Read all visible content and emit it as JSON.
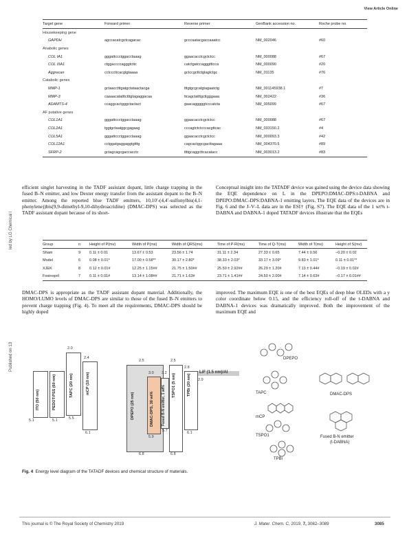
{
  "header": {
    "link": "View Article Online"
  },
  "sidebar": {
    "top": "led by LG Chemical l",
    "bottom": "Published on 13"
  },
  "table1": {
    "headers": [
      "Target gene",
      "Forward primer",
      "Reverse primer",
      "GenBank accession no.",
      "Roche probe no."
    ],
    "rows": [
      {
        "type": "group",
        "label": "Housekeeping gene"
      },
      {
        "type": "gene",
        "cells": [
          "GAPDH",
          "agccacatcgctcagacac",
          "gcccaatacgaccaaatcc",
          "NM_002046",
          "#60"
        ]
      },
      {
        "type": "group",
        "label": "Anabolic genes"
      },
      {
        "type": "gene",
        "cells": [
          "COL IA1",
          "gggattccctggacctaaag",
          "ggaacacctcgctctcc",
          "NM_000088",
          "#67"
        ]
      },
      {
        "type": "gene",
        "cells": [
          "COL IIIA1",
          "ctggaccccagggtcttc",
          "catctgatccagggtttcca",
          "NM_000090",
          "#20"
        ]
      },
      {
        "type": "gene",
        "cells": [
          "Aggrecan",
          "cctcccttcacgtgtaaaa",
          "gctccgcttctgtagtctgc",
          "NM_01135",
          "#76"
        ]
      },
      {
        "type": "group",
        "label": "Catabolic genes"
      },
      {
        "type": "gene",
        "cells": [
          "MMP-1",
          "gctaacctttgatgctataactacga",
          "tttgtgcgcatgtagaatctg",
          "NM_001145938.1",
          "#7"
        ]
      },
      {
        "type": "gene",
        "cells": [
          "MMP-3",
          "caaaacatatttctttgtagaggacaa",
          "ttcagctatttgcttgggaaa",
          "NM_002422",
          "#36"
        ]
      },
      {
        "type": "gene",
        "cells": [
          "ADAMTS-4",
          "ccaggcactgggctactact",
          "gaacagggggtcccatcta",
          "NM_005099",
          "#67"
        ]
      },
      {
        "type": "group",
        "label": "AF putative genes"
      },
      {
        "type": "gene",
        "cells": [
          "COL1A1",
          "gggattccctggacctaaag",
          "ggaacacctcgctctcc",
          "NM_000088",
          "#67"
        ]
      },
      {
        "type": "gene",
        "cells": [
          "COL2A1",
          "tggtgctaatggcgagaag",
          "cccagtctctcccacgttcac",
          "NM_033150.2",
          "#4"
        ]
      },
      {
        "type": "gene",
        "cells": [
          "COL5A1",
          "gggattccctggacctaaag",
          "ggaacacctcgctctcc",
          "NM_000093.3",
          "#42"
        ]
      },
      {
        "type": "gene",
        "cells": [
          "COL12A1",
          "cctggatgaggaggtgtttg",
          "cagcactggcgacttagaaa",
          "NM_004370.5",
          "#89"
        ]
      },
      {
        "type": "gene",
        "cells": [
          "SFRP-2",
          "gctagcagcgaccacctc",
          "ttttgcaggcttcacatacc",
          "NM_003013.2",
          "#83"
        ]
      }
    ]
  },
  "left_para": "efficient singlet harvesting in the TADF assistant dopant, little charge trapping in the fused B–N emitter, and low Dexter energy transfer from the assistant dopant to the B–N emitter. Among the reported blue TADF emitters, 10,10′-(4,4′-sulfonylbis(4,1-phenylene))bis(9,9-dimethyl-9,10-dihydroacridine) (DMAC-DPS) was selected as the TADF assistant dopant because of its short-",
  "right_para": "Conceptual insight into the TATADF device was gained using the device data showing the EQE dependence on L in the DPEPO:DMAC-DPS:t-DABNA and DPEPO:DMAC-DPS:DABNA-1 emitting layers. The EQE data of the devices are in Fig. 6 and the J–V–L data are in the ESI† (Fig. S7). The EQE data of the 1 wt% t-DABNA and DABNA-1 doped TATADF devices illustrate that the EQEs",
  "table2": {
    "headers": [
      "Group",
      "n",
      "Height of P(mv)",
      "Width of P(ms)",
      "Width of QRS(ms)",
      "Time of P-R(ms)",
      "Time of Q-T(ms)",
      "Width of T(ms)",
      "Height of S(mv)"
    ],
    "rows": [
      [
        "Sham",
        "9",
        "0.11 ± 0.01",
        "13.67 ± 0.53",
        "23.56 ± 1.74",
        "31.11 ± 2.34",
        "27.33 ± 0.65",
        "7.44 ± 0.56",
        "−0.20 ± 0.02"
      ],
      [
        "Model",
        "6",
        "0.08 ± 0.01*",
        "17.00 ± 0.58**",
        "30.17 ± 2.80*",
        "38.33 ± 2.03*",
        "33.17 ± 3.09*",
        "9.83 ± 1.01*",
        "0.11 ± 0.01**"
      ],
      [
        "XJEK",
        "8",
        "0.12 ± 0.01#",
        "12.25 ± 1.15##",
        "21.75 ± 1.50##",
        "25.50 ± 2.92##",
        "26.29 ± 1.20#",
        "7.13 ± 0.44#",
        "−0.19 ± 0.02#"
      ],
      [
        "Fosinopril",
        "7",
        "0.11 ± 0.01#",
        "13.14 ± 1.08##",
        "21.71 ± 1.63#",
        "23.71 ± 1.41##",
        "24.50 ± 2.00#",
        "7.14 ± 0.63#",
        "−0.17 ± 0.01##"
      ]
    ]
  },
  "left_para2": "DMAC-DPS is appropriate as the TADF assistant dopant material. Additionally, the HOMO/LUMO levels of DMAC-DPS are similar to those of the fused B–N emitters to prevent charge trapping (Fig. 4). To meet all the requirements, DMAC-DPS should be highly doped",
  "right_para2": "improved. The maximum EQE is one of the best EQEs of deep blue OLEDs with a y color coordinate below 0.15, and the efficiency roll-off of the t-DABNA and DABNA-1 devices was dramatically improved. Both the improvement of the maximum EQE and",
  "diagram": {
    "layers": [
      {
        "name": "ITO (50 nm)",
        "lumo": "",
        "homo": "5.1"
      },
      {
        "name": "PEDOT:PSS (60 nm)",
        "lumo": "",
        "homo": "5.1"
      },
      {
        "name": "TAPC (20 nm)",
        "lumo": "2.0",
        "homo": "5.5"
      },
      {
        "name": "mCP (10 nm)",
        "lumo": "2.4",
        "homo": "6.1"
      },
      {
        "name": "DPEPO (25 nm)",
        "lumo": "2.5",
        "homo": "6.8"
      },
      {
        "name": "DMAC-DPS, 30 wt%",
        "lumo": "3.0",
        "homo": "5.9"
      },
      {
        "name": "Fused B-N emitter, 1 wt%",
        "lumo": "3.2",
        "homo": "5.7"
      },
      {
        "name": "TSPO1 (5 nm)",
        "lumo": "2.5",
        "homo": "6.8"
      },
      {
        "name": "TPBi (20 nm)",
        "lumo": "2.8",
        "homo": "6.1"
      },
      {
        "name": "LiF (1.5 nm)/Al",
        "lumo": "2.9",
        "homo": ""
      }
    ],
    "structures": [
      "DPEPO",
      "TAPC",
      "DMAC-DPS",
      "mCP",
      "TSPO1",
      "Fused B-N emitter",
      "(t-DABNA)",
      "TPBi"
    ]
  },
  "caption": {
    "label": "Fig. 4",
    "text": "Energy level diagram of the TATADF devices and chemical structure of materials."
  },
  "footer": {
    "left": "This journal is © The Royal Society of Chemistry 2019",
    "journal": "J. Mater. Chem. C,",
    "year": "2019,",
    "volume": "7,",
    "pages": "3082–3089",
    "page": "3085"
  }
}
